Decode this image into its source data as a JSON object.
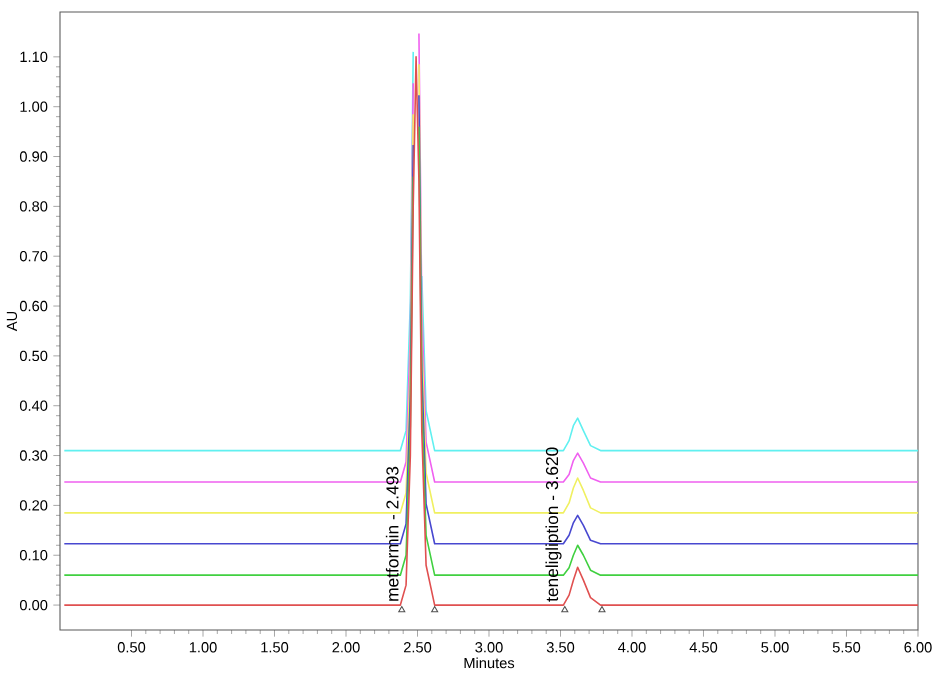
{
  "chart_data": {
    "type": "line",
    "xlabel": "Minutes",
    "ylabel": "AU",
    "xlim": [
      0,
      6
    ],
    "ylim": [
      -0.05,
      1.19
    ],
    "xticks": [
      {
        "value": 0.5,
        "label": "0.50"
      },
      {
        "value": 1,
        "label": "1.00"
      },
      {
        "value": 1.5,
        "label": "1.50"
      },
      {
        "value": 2,
        "label": "2.00"
      },
      {
        "value": 2.5,
        "label": "2.50"
      },
      {
        "value": 3,
        "label": "3.00"
      },
      {
        "value": 3.5,
        "label": "3.50"
      },
      {
        "value": 4,
        "label": "4.00"
      },
      {
        "value": 4.5,
        "label": "4.50"
      },
      {
        "value": 5,
        "label": "5.00"
      },
      {
        "value": 5.5,
        "label": "5.50"
      },
      {
        "value": 6,
        "label": "6.00"
      }
    ],
    "yticks": [
      {
        "value": 0,
        "label": "0.00"
      },
      {
        "value": 0.1,
        "label": "0.10"
      },
      {
        "value": 0.2,
        "label": "0.20"
      },
      {
        "value": 0.3,
        "label": "0.30"
      },
      {
        "value": 0.4,
        "label": "0.40"
      },
      {
        "value": 0.5,
        "label": "0.50"
      },
      {
        "value": 0.6,
        "label": "0.60"
      },
      {
        "value": 0.7,
        "label": "0.70"
      },
      {
        "value": 0.8,
        "label": "0.80"
      },
      {
        "value": 0.9,
        "label": "0.90"
      },
      {
        "value": 1,
        "label": "1.00"
      },
      {
        "value": 1.1,
        "label": "1.10"
      }
    ],
    "x": [
      0.03,
      2.38,
      2.42,
      2.45,
      2.47,
      2.49,
      2.51,
      2.53,
      2.56,
      2.62,
      3.52,
      3.56,
      3.59,
      3.62,
      3.66,
      3.71,
      3.78,
      6.0
    ],
    "series": [
      {
        "color": "#60f0f0",
        "values": [
          0.31,
          0.31,
          0.35,
          0.61,
          1.11,
          null,
          null,
          0.66,
          0.39,
          0.31,
          0.31,
          0.33,
          0.36,
          0.375,
          0.35,
          0.32,
          0.31,
          0.31
        ]
      },
      {
        "color": "#f060f0",
        "values": [
          0.247,
          0.247,
          0.287,
          0.547,
          1.047,
          null,
          1.147,
          0.597,
          0.327,
          0.247,
          0.247,
          0.262,
          0.29,
          0.305,
          0.285,
          0.255,
          0.247,
          0.247
        ]
      },
      {
        "color": "#f0f060",
        "values": [
          0.185,
          0.185,
          0.225,
          0.485,
          0.985,
          null,
          1.085,
          0.535,
          0.265,
          0.185,
          0.185,
          0.205,
          0.235,
          0.255,
          0.23,
          0.195,
          0.185,
          0.185
        ]
      },
      {
        "color": "#4848d0",
        "values": [
          0.123,
          0.123,
          0.163,
          0.423,
          0.923,
          null,
          1.023,
          0.473,
          0.203,
          0.123,
          0.123,
          0.14,
          0.165,
          0.18,
          0.16,
          0.13,
          0.123,
          0.123
        ]
      },
      {
        "color": "#40d040",
        "values": [
          0.06,
          0.06,
          0.1,
          0.36,
          0.86,
          null,
          0.96,
          0.41,
          0.14,
          0.06,
          0.06,
          0.075,
          0.1,
          0.12,
          0.1,
          0.07,
          0.06,
          0.06
        ]
      },
      {
        "color": "#e05050",
        "values": [
          0,
          0,
          0.04,
          0.3,
          0.8,
          1.1,
          0.85,
          0.35,
          0.08,
          0,
          0,
          0.02,
          0.05,
          0.076,
          0.05,
          0.015,
          0,
          0
        ]
      },
      {
        "type": "scatter",
        "marker": "triangle",
        "color": "#505050",
        "x": [
          2.39,
          2.62,
          3.53,
          3.79
        ],
        "values": [
          -0.01,
          -0.01,
          -0.01,
          -0.01
        ]
      }
    ],
    "annotations": [
      "metformin - 2.493",
      "teneligliption - 3.620"
    ],
    "grid": false,
    "marker": "none",
    "line_style": "solid"
  }
}
